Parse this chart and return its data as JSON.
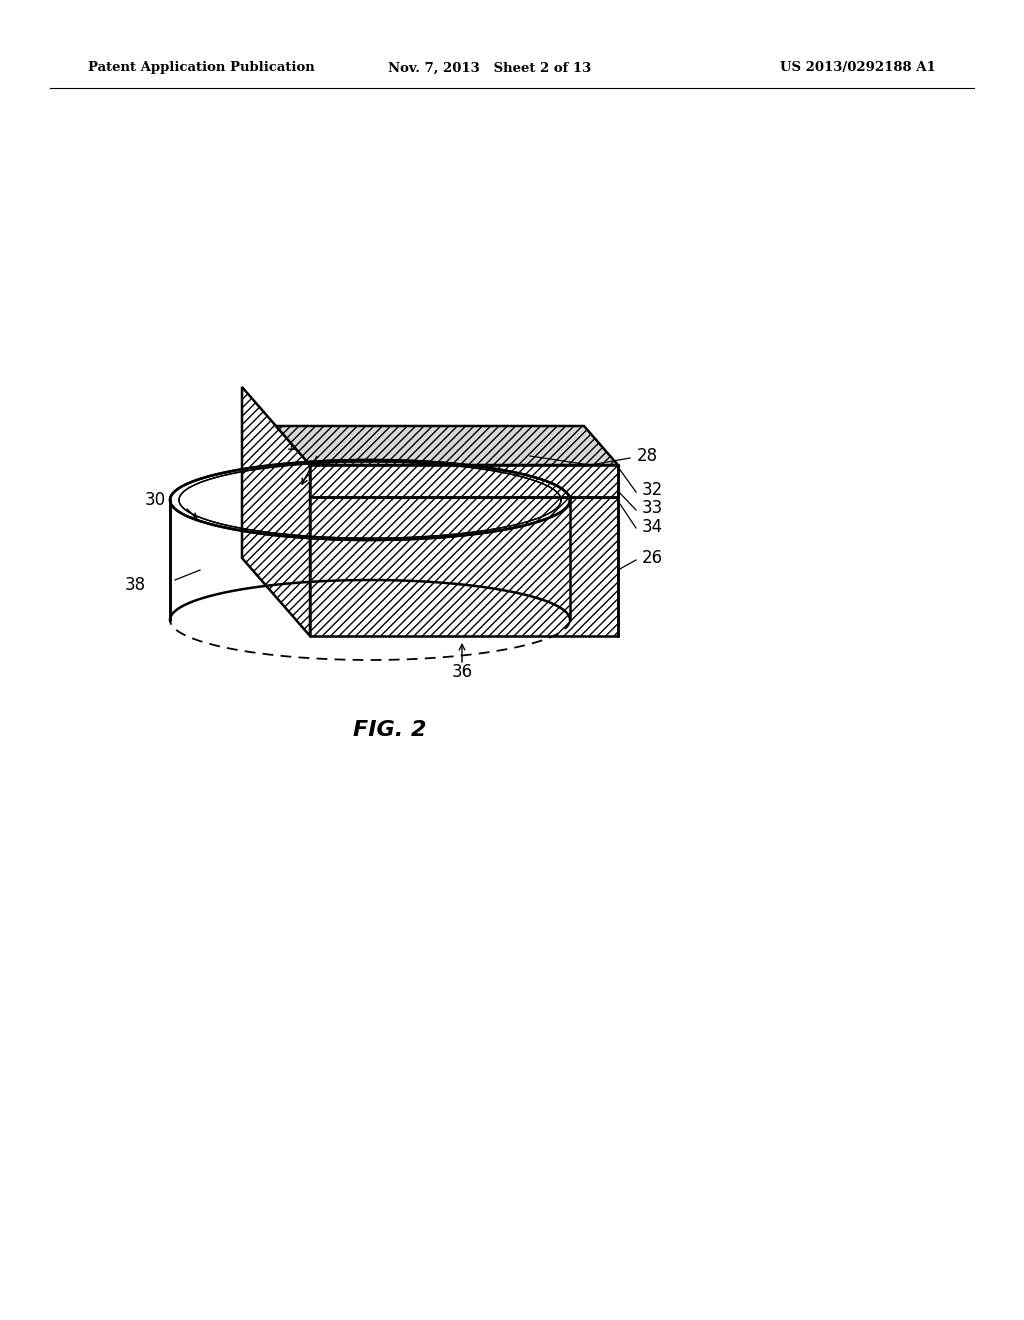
{
  "header_left": "Patent Application Publication",
  "header_middle": "Nov. 7, 2013   Sheet 2 of 13",
  "header_right": "US 2013/0292188 A1",
  "fig_label": "FIG. 2",
  "background_color": "#ffffff"
}
